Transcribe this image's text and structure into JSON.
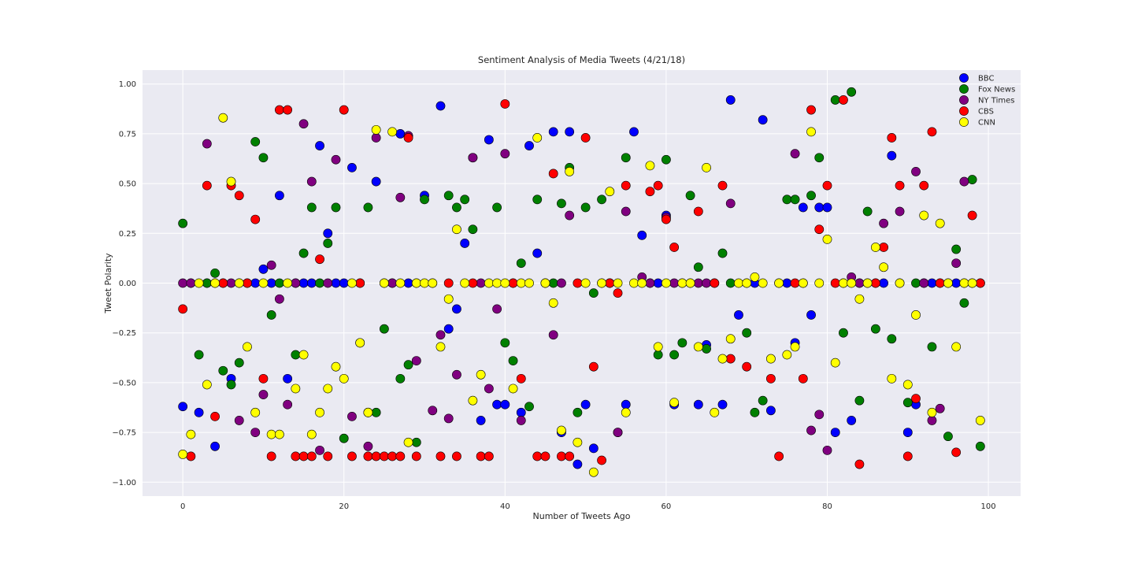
{
  "chart_data": {
    "type": "scatter",
    "title": "Sentiment Analysis of Media Tweets (4/21/18)",
    "xlabel": "Number of Tweets Ago",
    "ylabel": "Tweet Polarity",
    "xlim": [
      -5,
      104
    ],
    "ylim": [
      -1.07,
      1.07
    ],
    "xticks": [
      0,
      20,
      40,
      60,
      80,
      100
    ],
    "xtick_labels": [
      "0",
      "20",
      "40",
      "60",
      "80",
      "100"
    ],
    "yticks": [
      -1.0,
      -0.75,
      -0.5,
      -0.25,
      0.0,
      0.25,
      0.5,
      0.75,
      1.0
    ],
    "ytick_labels": [
      "−1.00",
      "−0.75",
      "−0.50",
      "−0.25",
      "0.00",
      "0.25",
      "0.50",
      "0.75",
      "1.00"
    ],
    "grid": true,
    "legend_position": "top-right",
    "series": [
      {
        "name": "BBC",
        "color": "#0000ff",
        "x": [
          0,
          1,
          2,
          3,
          4,
          5,
          6,
          7,
          8,
          9,
          10,
          11,
          12,
          13,
          14,
          15,
          16,
          17,
          18,
          19,
          20,
          21,
          22,
          23,
          24,
          25,
          26,
          27,
          28,
          29,
          30,
          31,
          32,
          33,
          34,
          35,
          36,
          37,
          38,
          39,
          40,
          41,
          42,
          43,
          44,
          45,
          46,
          47,
          48,
          49,
          50,
          51,
          52,
          53,
          54,
          55,
          56,
          57,
          58,
          59,
          60,
          61,
          62,
          63,
          64,
          65,
          66,
          67,
          68,
          69,
          70,
          71,
          72,
          73,
          74,
          75,
          76,
          77,
          78,
          79,
          80,
          81,
          82,
          83,
          84,
          85,
          86,
          87,
          88,
          89,
          90,
          91,
          92,
          93,
          94,
          95,
          96,
          97,
          98,
          99
        ],
        "y": [
          -0.62,
          0,
          -0.65,
          0,
          -0.82,
          0,
          -0.48,
          0,
          0,
          0,
          0.07,
          0,
          0.44,
          -0.48,
          0,
          0,
          0,
          0.69,
          0.25,
          0,
          0,
          0.58,
          0,
          -0.65,
          0.51,
          0,
          0,
          0.75,
          0,
          0,
          0.44,
          0,
          0.89,
          -0.23,
          -0.13,
          0.2,
          0.63,
          -0.69,
          0.72,
          -0.61,
          -0.61,
          0,
          -0.65,
          0.69,
          0.15,
          0,
          0.76,
          -0.75,
          0.76,
          -0.91,
          -0.61,
          -0.83,
          0,
          0,
          -0.75,
          -0.61,
          0.76,
          0.24,
          0,
          0,
          0.34,
          -0.61,
          0,
          0,
          -0.61,
          -0.31,
          0,
          -0.61,
          0.92,
          -0.16,
          0,
          0,
          0.82,
          -0.64,
          0,
          0,
          -0.3,
          0.38,
          -0.16,
          0.38,
          0.38,
          -0.75,
          0,
          -0.69,
          0,
          0,
          0,
          0,
          0.64,
          0,
          -0.75,
          -0.61,
          0,
          0,
          0,
          0,
          0,
          0,
          0,
          0
        ]
      },
      {
        "name": "Fox News",
        "color": "#008000",
        "x": [
          0,
          2,
          3,
          4,
          5,
          6,
          7,
          9,
          10,
          11,
          12,
          14,
          15,
          16,
          17,
          18,
          19,
          20,
          22,
          23,
          24,
          25,
          27,
          28,
          29,
          30,
          33,
          34,
          35,
          36,
          39,
          40,
          41,
          42,
          43,
          44,
          46,
          47,
          48,
          49,
          50,
          51,
          52,
          53,
          55,
          59,
          60,
          61,
          62,
          63,
          64,
          65,
          67,
          68,
          70,
          71,
          72,
          75,
          76,
          77,
          78,
          79,
          81,
          82,
          83,
          84,
          85,
          86,
          88,
          90,
          91,
          93,
          95,
          96,
          97,
          98,
          99
        ],
        "y": [
          0.3,
          -0.36,
          0,
          0.05,
          -0.44,
          -0.51,
          -0.4,
          0.71,
          0.63,
          -0.16,
          0,
          -0.36,
          0.15,
          0.38,
          0,
          0.2,
          0.38,
          -0.78,
          -0.3,
          0.38,
          -0.65,
          -0.23,
          -0.48,
          -0.41,
          -0.8,
          0.42,
          0.44,
          0.38,
          0.42,
          0.27,
          0.38,
          -0.3,
          -0.39,
          0.1,
          -0.62,
          0.42,
          0,
          0.4,
          0.58,
          -0.65,
          0.38,
          -0.05,
          0.42,
          0,
          0.63,
          -0.36,
          0.62,
          -0.36,
          -0.3,
          0.44,
          0.08,
          -0.33,
          0.15,
          0,
          -0.25,
          -0.65,
          -0.59,
          0.42,
          0.42,
          0,
          0.44,
          0.63,
          0.92,
          -0.25,
          0.96,
          -0.59,
          0.36,
          -0.23,
          -0.28,
          -0.6,
          0,
          -0.32,
          -0.77,
          0.17,
          -0.1,
          0.52,
          -0.82
        ]
      },
      {
        "name": "NY Times",
        "color": "#800080",
        "x": [
          0,
          1,
          3,
          4,
          6,
          7,
          9,
          10,
          11,
          12,
          13,
          14,
          15,
          16,
          17,
          18,
          19,
          21,
          23,
          24,
          26,
          27,
          28,
          29,
          31,
          32,
          33,
          34,
          36,
          37,
          38,
          39,
          40,
          42,
          45,
          46,
          47,
          48,
          54,
          55,
          57,
          58,
          60,
          61,
          64,
          65,
          68,
          76,
          78,
          79,
          80,
          83,
          84,
          87,
          89,
          91,
          92,
          93,
          94,
          96,
          97
        ],
        "y": [
          0,
          0,
          0.7,
          0,
          0,
          -0.69,
          -0.75,
          -0.56,
          0.09,
          -0.08,
          -0.61,
          0,
          0.8,
          0.51,
          -0.84,
          0,
          0.62,
          -0.67,
          -0.82,
          0.73,
          0,
          0.43,
          0.74,
          -0.39,
          -0.64,
          -0.26,
          -0.68,
          -0.46,
          0.63,
          0,
          -0.53,
          -0.13,
          0.65,
          -0.69,
          0,
          -0.26,
          0,
          0.34,
          -0.75,
          0.36,
          0.03,
          0,
          0.33,
          0,
          0,
          0,
          0.4,
          0.65,
          -0.74,
          -0.66,
          -0.84,
          0.03,
          0,
          0.3,
          0.36,
          0.56,
          0,
          -0.69,
          -0.63,
          0.1,
          0.51
        ]
      },
      {
        "name": "CBS",
        "color": "#ff0000",
        "x": [
          0,
          1,
          3,
          4,
          5,
          6,
          7,
          8,
          9,
          10,
          11,
          12,
          13,
          14,
          15,
          16,
          17,
          18,
          20,
          21,
          22,
          23,
          24,
          25,
          26,
          27,
          28,
          29,
          32,
          33,
          34,
          36,
          37,
          38,
          40,
          41,
          42,
          44,
          45,
          46,
          47,
          48,
          49,
          50,
          51,
          52,
          53,
          54,
          55,
          58,
          59,
          60,
          61,
          64,
          66,
          67,
          68,
          70,
          73,
          74,
          76,
          77,
          78,
          79,
          80,
          81,
          82,
          84,
          86,
          87,
          88,
          89,
          90,
          91,
          92,
          93,
          94,
          96,
          98,
          99
        ],
        "y": [
          -0.13,
          -0.87,
          0.49,
          -0.67,
          0,
          0.49,
          0.44,
          0,
          0.32,
          -0.48,
          -0.87,
          0.87,
          0.87,
          -0.87,
          -0.87,
          -0.87,
          0.12,
          -0.87,
          0.87,
          -0.87,
          0,
          -0.87,
          -0.87,
          -0.87,
          -0.87,
          -0.87,
          0.73,
          -0.87,
          -0.87,
          0,
          -0.87,
          0,
          -0.87,
          -0.87,
          0.9,
          0,
          -0.48,
          -0.87,
          -0.87,
          0.55,
          -0.87,
          -0.87,
          0,
          0.73,
          -0.42,
          -0.89,
          0,
          -0.05,
          0.49,
          0.46,
          0.49,
          0.32,
          0.18,
          0.36,
          0,
          0.49,
          -0.38,
          -0.42,
          -0.48,
          -0.87,
          0,
          -0.48,
          0.87,
          0.27,
          0.49,
          0,
          0.92,
          -0.91,
          0,
          0.18,
          0.73,
          0.49,
          -0.87,
          -0.58,
          0.49,
          0.76,
          0,
          -0.85,
          0.34,
          0
        ]
      },
      {
        "name": "CNN",
        "color": "#ffff00",
        "x": [
          0,
          1,
          2,
          3,
          4,
          5,
          6,
          7,
          8,
          9,
          10,
          11,
          12,
          13,
          14,
          15,
          16,
          17,
          18,
          19,
          20,
          21,
          22,
          23,
          24,
          25,
          26,
          27,
          28,
          29,
          30,
          31,
          32,
          33,
          34,
          35,
          36,
          37,
          38,
          39,
          40,
          41,
          42,
          43,
          44,
          45,
          46,
          47,
          48,
          49,
          50,
          51,
          52,
          53,
          54,
          55,
          56,
          57,
          58,
          59,
          60,
          61,
          62,
          63,
          64,
          65,
          66,
          67,
          68,
          69,
          70,
          71,
          72,
          73,
          74,
          75,
          76,
          77,
          78,
          79,
          80,
          81,
          82,
          83,
          84,
          85,
          86,
          87,
          88,
          89,
          90,
          91,
          92,
          93,
          94,
          95,
          96,
          97,
          98,
          99
        ],
        "y": [
          -0.86,
          -0.76,
          0,
          -0.51,
          0,
          0.83,
          0.51,
          0,
          -0.32,
          -0.65,
          0,
          -0.76,
          -0.76,
          0,
          -0.53,
          -0.36,
          -0.76,
          -0.65,
          -0.53,
          -0.42,
          -0.48,
          0,
          -0.3,
          -0.65,
          0.77,
          0,
          0.76,
          0,
          -0.8,
          0,
          0,
          0,
          -0.32,
          -0.08,
          0.27,
          0,
          -0.59,
          -0.46,
          0,
          0,
          0,
          -0.53,
          0,
          0,
          0.73,
          0,
          -0.1,
          -0.74,
          0.56,
          -0.8,
          0,
          -0.95,
          0,
          0.46,
          0,
          -0.65,
          0,
          0,
          0.59,
          -0.32,
          0,
          -0.6,
          0,
          0,
          -0.32,
          0.58,
          -0.65,
          -0.38,
          -0.28,
          0,
          0,
          0.03,
          0,
          -0.38,
          0,
          -0.36,
          -0.32,
          0,
          0.76,
          0,
          0.22,
          -0.4,
          0,
          0,
          -0.08,
          0,
          0.18,
          0.08,
          -0.48,
          0,
          -0.51,
          -0.16,
          0.34,
          -0.65,
          0.3,
          0,
          -0.32,
          0,
          0,
          -0.69
        ]
      }
    ]
  }
}
